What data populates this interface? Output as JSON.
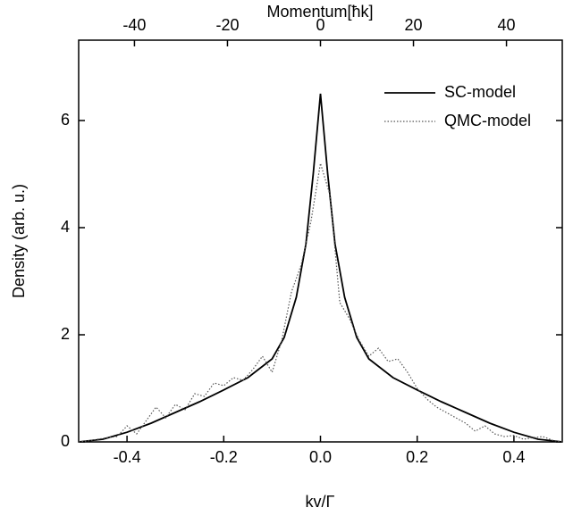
{
  "chart_data": {
    "type": "line",
    "xlabel": "kv/Γ",
    "ylabel": "Density (arb. u.)",
    "x2label": "Momentum[ħk]",
    "xlim": [
      -0.5,
      0.5
    ],
    "xticks": [
      -0.4,
      -0.2,
      {
        "value": 0,
        "label": "0.0"
      },
      0.2,
      0.4
    ],
    "x2lim": [
      -52,
      52
    ],
    "x2ticks": [
      -40,
      -20,
      0,
      20,
      40
    ],
    "ylim": [
      0,
      7.5
    ],
    "yticks": [
      0,
      2,
      4,
      6
    ],
    "legend": "top-right",
    "series": [
      {
        "name": "SC-model",
        "color": "#000000",
        "style": "solid",
        "x": [
          -0.5,
          -0.45,
          -0.4,
          -0.35,
          -0.3,
          -0.25,
          -0.2,
          -0.15,
          -0.1,
          -0.075,
          -0.05,
          -0.03,
          -0.015,
          0,
          0.015,
          0.03,
          0.05,
          0.075,
          0.1,
          0.15,
          0.2,
          0.25,
          0.3,
          0.35,
          0.4,
          0.45,
          0.5
        ],
        "values": [
          0,
          0.05,
          0.18,
          0.35,
          0.55,
          0.75,
          0.97,
          1.2,
          1.55,
          1.95,
          2.7,
          3.7,
          5.0,
          6.5,
          5.0,
          3.7,
          2.7,
          1.95,
          1.55,
          1.2,
          0.97,
          0.75,
          0.55,
          0.35,
          0.18,
          0.05,
          0
        ]
      },
      {
        "name": "QMC-model",
        "color": "#555555",
        "style": "dotted",
        "x": [
          -0.5,
          -0.48,
          -0.46,
          -0.44,
          -0.42,
          -0.4,
          -0.38,
          -0.36,
          -0.34,
          -0.32,
          -0.3,
          -0.28,
          -0.26,
          -0.24,
          -0.22,
          -0.2,
          -0.18,
          -0.16,
          -0.14,
          -0.12,
          -0.1,
          -0.08,
          -0.06,
          -0.04,
          -0.02,
          0,
          0.02,
          0.04,
          0.06,
          0.08,
          0.1,
          0.12,
          0.14,
          0.16,
          0.18,
          0.2,
          0.22,
          0.24,
          0.26,
          0.28,
          0.3,
          0.32,
          0.34,
          0.36,
          0.38,
          0.4,
          0.42,
          0.44,
          0.46,
          0.48,
          0.5
        ],
        "values": [
          0,
          0.02,
          0.05,
          0.08,
          0.1,
          0.3,
          0.15,
          0.4,
          0.65,
          0.45,
          0.7,
          0.6,
          0.9,
          0.85,
          1.1,
          1.05,
          1.2,
          1.15,
          1.35,
          1.6,
          1.3,
          1.9,
          2.8,
          3.3,
          4.1,
          5.2,
          4.6,
          2.6,
          2.3,
          1.9,
          1.6,
          1.75,
          1.5,
          1.55,
          1.3,
          1.0,
          0.8,
          0.65,
          0.55,
          0.45,
          0.35,
          0.2,
          0.3,
          0.15,
          0.1,
          0.12,
          0.05,
          0.08,
          0.1,
          0.03,
          0
        ]
      }
    ]
  }
}
